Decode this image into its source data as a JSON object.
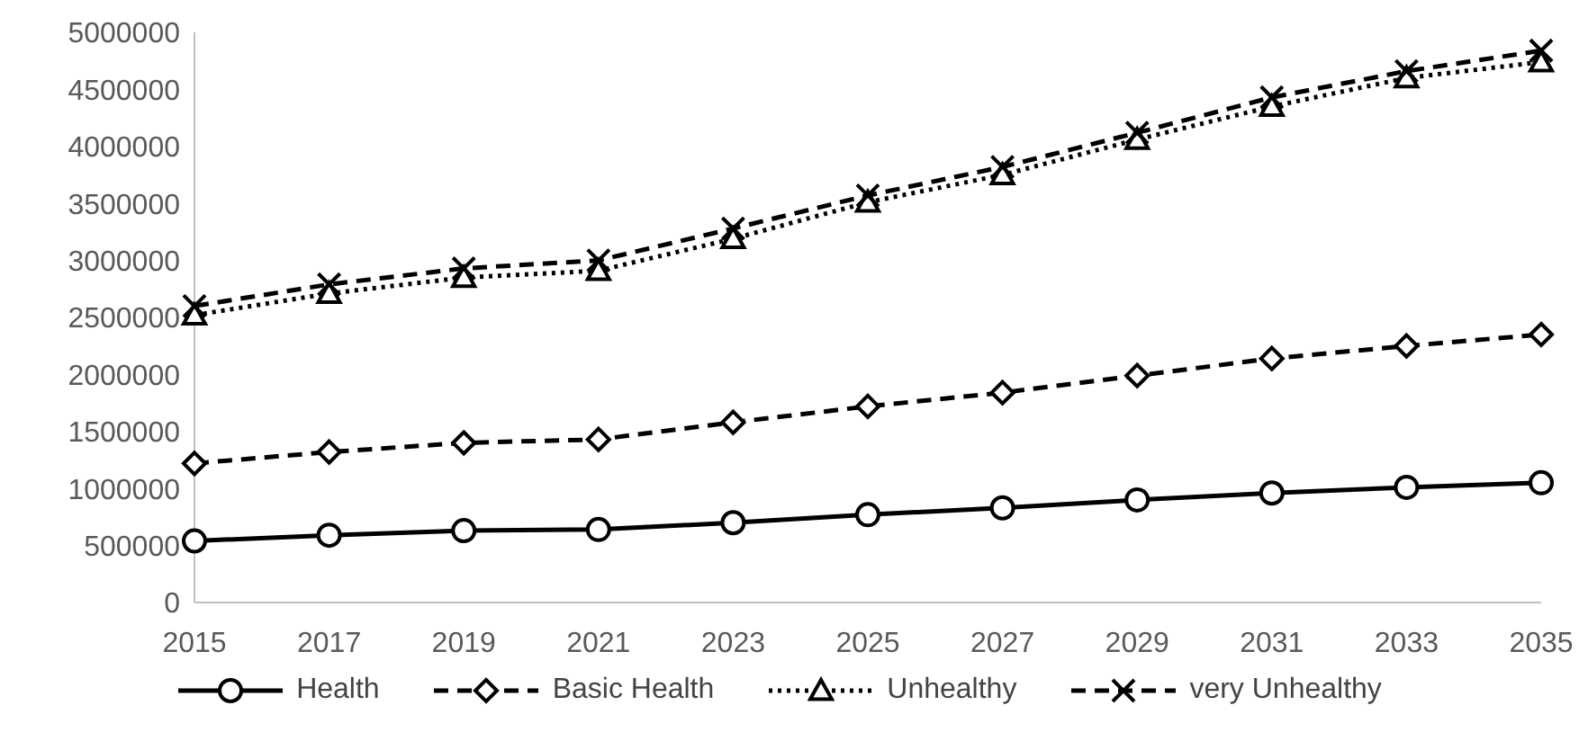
{
  "chart_data": {
    "type": "line",
    "categories": [
      "2015",
      "2017",
      "2019",
      "2021",
      "2023",
      "2025",
      "2027",
      "2029",
      "2031",
      "2033",
      "2035"
    ],
    "series": [
      {
        "name": "Health",
        "color": "#000000",
        "marker": "circle",
        "line_style": "solid",
        "values": [
          540000,
          590000,
          630000,
          640000,
          700000,
          770000,
          830000,
          900000,
          960000,
          1010000,
          1050000
        ]
      },
      {
        "name": "Basic Health",
        "color": "#000000",
        "marker": "diamond",
        "line_style": "dashed",
        "values": [
          1220000,
          1320000,
          1400000,
          1430000,
          1580000,
          1720000,
          1840000,
          1990000,
          2140000,
          2250000,
          2350000
        ]
      },
      {
        "name": "Unhealthy",
        "color": "#000000",
        "marker": "triangle",
        "line_style": "dotted",
        "values": [
          2520000,
          2710000,
          2850000,
          2910000,
          3190000,
          3510000,
          3750000,
          4060000,
          4350000,
          4600000,
          4740000
        ]
      },
      {
        "name": "very Unhealthy",
        "color": "#000000",
        "marker": "cross",
        "line_style": "dashed",
        "values": [
          2600000,
          2790000,
          2930000,
          3000000,
          3280000,
          3570000,
          3820000,
          4120000,
          4430000,
          4660000,
          4840000
        ]
      }
    ],
    "ylim": [
      0,
      5000000
    ],
    "yticks": [
      0,
      500000,
      1000000,
      1500000,
      2000000,
      2500000,
      3000000,
      3500000,
      4000000,
      4500000,
      5000000
    ],
    "grid": false,
    "legend": "bottom"
  }
}
